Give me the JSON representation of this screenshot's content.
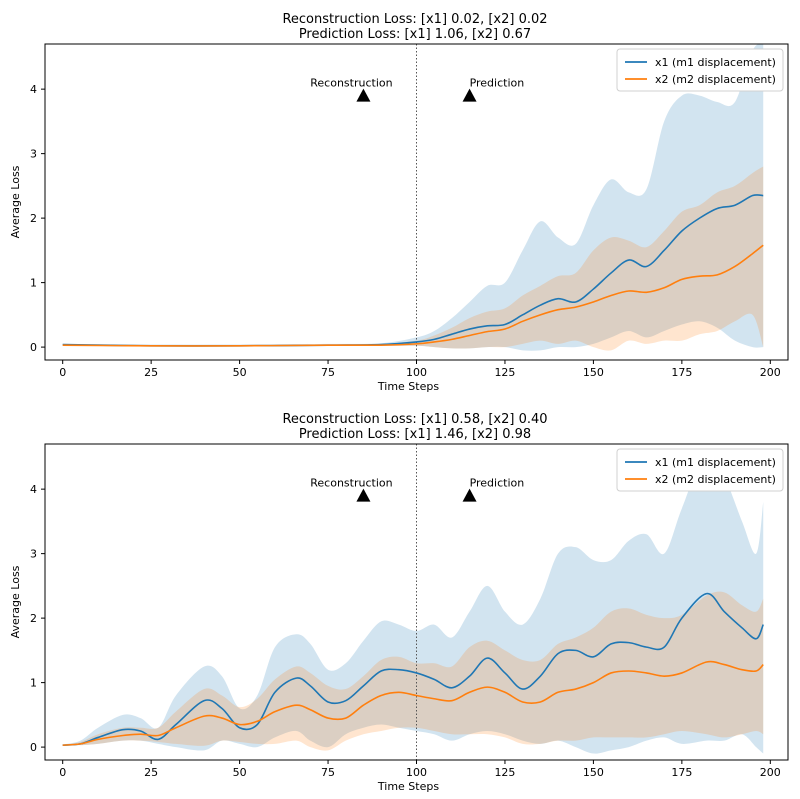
{
  "colors": {
    "x1": "#1f77b4",
    "x2": "#ff7f0e",
    "x1_band": "#1f77b4",
    "x2_band": "#ff7f0e",
    "axes": "#000000",
    "divider": "#555555"
  },
  "chart_data": [
    {
      "type": "line",
      "title_line1": "Reconstruction Loss: [x1] 0.02, [x2] 0.02",
      "title_line2": "Prediction Loss: [x1] 1.06, [x2] 0.67",
      "xlabel": "Time Steps",
      "ylabel": "Average Loss",
      "xlim": [
        -5,
        205
      ],
      "ylim": [
        -0.2,
        4.7
      ],
      "xticks": [
        0,
        25,
        50,
        75,
        100,
        125,
        150,
        175,
        200
      ],
      "yticks": [
        0,
        1,
        2,
        3,
        4
      ],
      "divider_x": 100,
      "legend_position": "upper-right",
      "annotations": [
        {
          "text": "Reconstruction",
          "marker_x": 85,
          "marker_y": 3.9
        },
        {
          "text": "Prediction",
          "marker_x": 115,
          "marker_y": 3.9
        }
      ],
      "series": [
        {
          "name": "x1 (m1 displacement)",
          "x": [
            0,
            25,
            50,
            75,
            90,
            100,
            105,
            110,
            115,
            120,
            125,
            130,
            135,
            140,
            145,
            150,
            155,
            160,
            165,
            170,
            175,
            180,
            185,
            190,
            195,
            198
          ],
          "values": [
            0.04,
            0.02,
            0.02,
            0.03,
            0.04,
            0.08,
            0.12,
            0.2,
            0.28,
            0.33,
            0.35,
            0.5,
            0.65,
            0.75,
            0.7,
            0.9,
            1.15,
            1.35,
            1.25,
            1.5,
            1.8,
            2.0,
            2.15,
            2.2,
            2.35,
            2.35
          ],
          "band_low": [
            0.04,
            0.02,
            0.02,
            0.02,
            0.02,
            0.02,
            0.0,
            -0.02,
            -0.02,
            0.0,
            0.0,
            -0.05,
            -0.05,
            0.0,
            0.0,
            0.05,
            0.15,
            0.25,
            0.15,
            0.25,
            0.35,
            0.4,
            0.3,
            0.1,
            0.0,
            0.0
          ],
          "band_high": [
            0.05,
            0.04,
            0.04,
            0.05,
            0.06,
            0.15,
            0.25,
            0.45,
            0.7,
            0.95,
            1.0,
            1.5,
            1.95,
            1.7,
            1.6,
            2.2,
            2.6,
            2.4,
            2.45,
            3.5,
            3.9,
            3.9,
            3.8,
            3.8,
            4.6,
            4.7
          ]
        },
        {
          "name": "x2 (m2 displacement)",
          "x": [
            0,
            25,
            50,
            75,
            90,
            100,
            105,
            110,
            115,
            120,
            125,
            130,
            135,
            140,
            145,
            150,
            155,
            160,
            165,
            170,
            175,
            180,
            185,
            190,
            195,
            198
          ],
          "values": [
            0.03,
            0.02,
            0.02,
            0.03,
            0.03,
            0.05,
            0.08,
            0.12,
            0.18,
            0.24,
            0.28,
            0.4,
            0.5,
            0.58,
            0.62,
            0.7,
            0.8,
            0.87,
            0.85,
            0.92,
            1.05,
            1.1,
            1.12,
            1.25,
            1.45,
            1.58
          ],
          "band_low": [
            0.03,
            0.02,
            0.02,
            0.02,
            0.02,
            0.02,
            0.0,
            -0.02,
            -0.02,
            0.0,
            0.0,
            0.05,
            0.1,
            0.05,
            0.1,
            0.0,
            -0.05,
            0.1,
            0.05,
            0.1,
            0.1,
            0.2,
            0.25,
            0.4,
            0.5,
            0.0
          ],
          "band_high": [
            0.04,
            0.03,
            0.03,
            0.04,
            0.05,
            0.1,
            0.18,
            0.3,
            0.45,
            0.55,
            0.6,
            0.8,
            0.95,
            1.1,
            1.15,
            1.5,
            1.7,
            1.65,
            1.55,
            1.8,
            2.1,
            2.2,
            2.4,
            2.5,
            2.7,
            2.8
          ]
        }
      ]
    },
    {
      "type": "line",
      "title_line1": "Reconstruction Loss: [x1] 0.58, [x2] 0.40",
      "title_line2": "Prediction Loss: [x1] 1.46, [x2] 0.98",
      "xlabel": "Time Steps",
      "ylabel": "Average Loss",
      "xlim": [
        -5,
        205
      ],
      "ylim": [
        -0.2,
        4.7
      ],
      "xticks": [
        0,
        25,
        50,
        75,
        100,
        125,
        150,
        175,
        200
      ],
      "yticks": [
        0,
        1,
        2,
        3,
        4
      ],
      "divider_x": 100,
      "legend_position": "upper-right",
      "annotations": [
        {
          "text": "Reconstruction",
          "marker_x": 85,
          "marker_y": 3.9
        },
        {
          "text": "Prediction",
          "marker_x": 115,
          "marker_y": 3.9
        }
      ],
      "series": [
        {
          "name": "x1 (m1 displacement)",
          "x": [
            0,
            5,
            10,
            17,
            22,
            27,
            32,
            40,
            45,
            50,
            55,
            60,
            66,
            70,
            75,
            80,
            85,
            90,
            95,
            100,
            105,
            110,
            115,
            120,
            125,
            130,
            135,
            140,
            145,
            150,
            155,
            160,
            165,
            170,
            175,
            182,
            187,
            192,
            196,
            198
          ],
          "values": [
            0.03,
            0.05,
            0.15,
            0.27,
            0.25,
            0.12,
            0.35,
            0.72,
            0.6,
            0.3,
            0.35,
            0.85,
            1.07,
            0.95,
            0.7,
            0.72,
            0.95,
            1.18,
            1.2,
            1.15,
            1.05,
            0.92,
            1.1,
            1.38,
            1.15,
            0.9,
            1.1,
            1.45,
            1.5,
            1.4,
            1.6,
            1.62,
            1.55,
            1.55,
            2.0,
            2.38,
            2.1,
            1.85,
            1.68,
            1.9
          ],
          "band_low": [
            0.03,
            0.03,
            0.05,
            0.1,
            0.1,
            0.05,
            0.0,
            -0.05,
            0.1,
            0.05,
            0.0,
            0.15,
            0.25,
            0.1,
            0.0,
            0.2,
            0.3,
            0.35,
            0.3,
            0.25,
            0.2,
            0.1,
            0.2,
            0.25,
            0.2,
            0.1,
            0.05,
            0.1,
            0.0,
            -0.1,
            -0.05,
            0.0,
            0.1,
            0.15,
            0.05,
            0.1,
            0.1,
            0.2,
            0.0,
            -0.1
          ],
          "band_high": [
            0.04,
            0.1,
            0.3,
            0.5,
            0.45,
            0.3,
            0.8,
            1.25,
            1.1,
            0.6,
            0.8,
            1.55,
            1.75,
            1.6,
            1.2,
            1.3,
            1.65,
            1.95,
            1.9,
            1.8,
            1.9,
            1.7,
            2.1,
            2.5,
            2.1,
            1.9,
            2.3,
            3.0,
            3.1,
            2.9,
            2.9,
            3.2,
            3.3,
            3.0,
            3.7,
            4.6,
            4.2,
            3.5,
            3.0,
            3.8
          ]
        },
        {
          "name": "x2 (m2 displacement)",
          "x": [
            0,
            5,
            10,
            17,
            22,
            27,
            32,
            40,
            45,
            50,
            55,
            60,
            66,
            70,
            75,
            80,
            85,
            90,
            95,
            100,
            105,
            110,
            115,
            120,
            125,
            130,
            135,
            140,
            145,
            150,
            155,
            160,
            165,
            170,
            175,
            182,
            187,
            192,
            196,
            198
          ],
          "values": [
            0.03,
            0.05,
            0.12,
            0.18,
            0.2,
            0.18,
            0.3,
            0.48,
            0.45,
            0.35,
            0.4,
            0.55,
            0.65,
            0.58,
            0.45,
            0.45,
            0.65,
            0.8,
            0.85,
            0.8,
            0.75,
            0.72,
            0.85,
            0.93,
            0.85,
            0.7,
            0.7,
            0.85,
            0.9,
            1.0,
            1.15,
            1.18,
            1.15,
            1.1,
            1.15,
            1.32,
            1.28,
            1.2,
            1.18,
            1.28
          ],
          "band_low": [
            0.03,
            0.03,
            0.05,
            0.1,
            0.1,
            0.08,
            0.05,
            0.02,
            0.1,
            0.08,
            0.05,
            0.05,
            0.1,
            0.0,
            -0.05,
            0.1,
            0.2,
            0.25,
            0.3,
            0.3,
            0.25,
            0.2,
            0.2,
            0.2,
            0.15,
            0.05,
            0.05,
            0.1,
            0.1,
            0.15,
            0.15,
            0.15,
            0.15,
            0.2,
            0.25,
            0.2,
            0.15,
            0.2,
            0.25,
            0.2
          ],
          "band_high": [
            0.04,
            0.08,
            0.2,
            0.3,
            0.3,
            0.3,
            0.55,
            0.9,
            0.8,
            0.62,
            0.75,
            1.05,
            1.25,
            1.15,
            0.95,
            0.9,
            1.1,
            1.35,
            1.4,
            1.3,
            1.3,
            1.25,
            1.55,
            1.65,
            1.5,
            1.35,
            1.35,
            1.6,
            1.7,
            1.85,
            2.1,
            2.15,
            2.05,
            2.0,
            2.05,
            2.35,
            2.4,
            2.2,
            2.1,
            2.3
          ]
        }
      ]
    }
  ]
}
